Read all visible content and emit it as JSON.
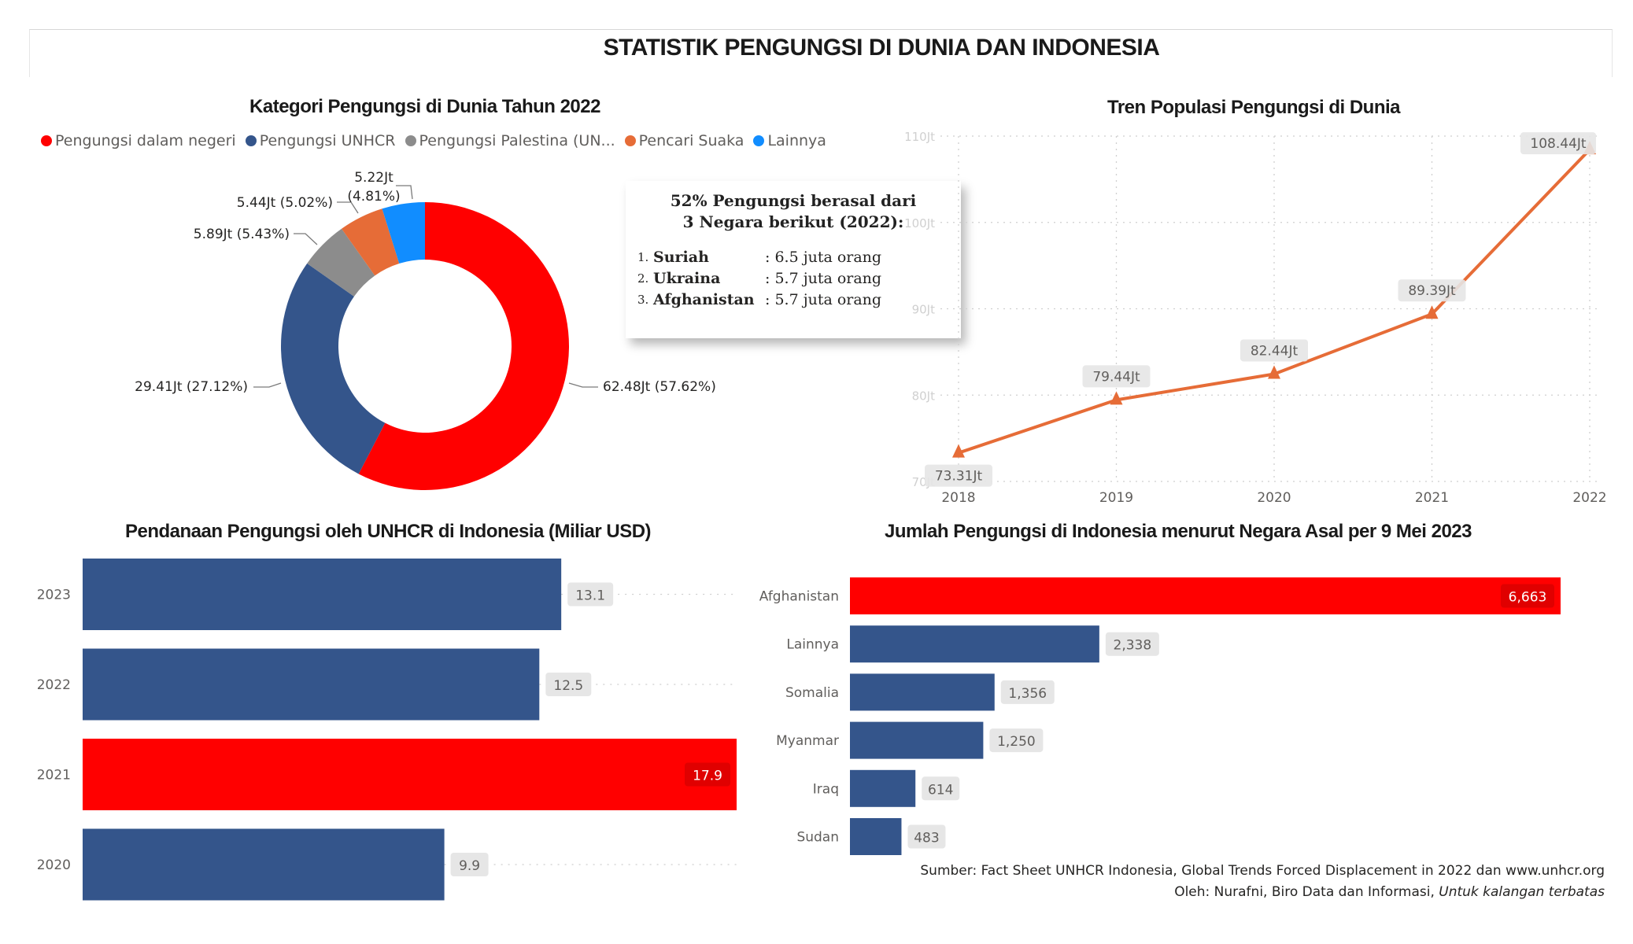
{
  "page": {
    "title": "STATISTIK PENGUNGSI DI DUNIA DAN INDONESIA"
  },
  "callout": {
    "heading_line1": "52% Pengungsi berasal dari",
    "heading_line2": "3 Negara berikut (2022):",
    "items": [
      {
        "num": "1.",
        "country": "Suriah",
        "value": ": 6.5 juta orang"
      },
      {
        "num": "2.",
        "country": "Ukraina",
        "value": ": 5.7 juta orang"
      },
      {
        "num": "3.",
        "country": "Afghanistan",
        "value": ": 5.7 juta orang"
      }
    ]
  },
  "footer": {
    "source": "Sumber: Fact Sheet UNHCR Indonesia, Global  Trends  Forced Displacement in 2022 dan www.unhcr.org",
    "author": "Oleh: Nurafni, Biro Data dan Informasi, ",
    "author_note": "Untuk kalangan terbatas"
  },
  "chart_data": [
    {
      "type": "pie",
      "title": "Kategori Pengungsi di Dunia Tahun 2022",
      "legend_position": "top-left",
      "slices": [
        {
          "name": "Pengungsi dalam negeri",
          "value": 62.48,
          "percent": 57.62,
          "label": "62.48Jt (57.62%)",
          "color": "#FF0000"
        },
        {
          "name": "Pengungsi UNHCR",
          "value": 29.41,
          "percent": 27.12,
          "label": "29.41Jt (27.12%)",
          "color": "#34558B"
        },
        {
          "name": "Pengungsi Palestina (UN...",
          "value": 5.89,
          "percent": 5.43,
          "label": "5.89Jt (5.43%)",
          "color": "#8C8C8C"
        },
        {
          "name": "Pencari Suaka",
          "value": 5.44,
          "percent": 5.02,
          "label": "5.44Jt (5.02%)",
          "color": "#E66C37"
        },
        {
          "name": "Lainnya",
          "value": 5.22,
          "percent": 4.81,
          "label": "5.22Jt (4.81%)",
          "label_line1": "5.22Jt",
          "label_line2": "(4.81%)",
          "color": "#118DFF"
        }
      ]
    },
    {
      "type": "line",
      "title": "Tren Populasi Pengungsi di Dunia",
      "x": [
        "2018",
        "2019",
        "2020",
        "2021",
        "2022"
      ],
      "values": [
        73.31,
        79.44,
        82.44,
        89.39,
        108.44
      ],
      "data_labels": [
        "73.31Jt",
        "79.44Jt",
        "82.44Jt",
        "89.39Jt",
        "108.44Jt"
      ],
      "ylim": [
        70,
        110
      ],
      "yticks": [
        70,
        80,
        90,
        100,
        110
      ],
      "ytick_labels": [
        "70Jt",
        "80Jt",
        "90Jt",
        "100Jt",
        "110Jt"
      ],
      "grid": true,
      "color": "#E66C37"
    },
    {
      "type": "bar",
      "orientation": "horizontal",
      "title": "Pendanaan Pengungsi oleh UNHCR di Indonesia (Miliar USD)",
      "categories": [
        "2023",
        "2022",
        "2021",
        "2020"
      ],
      "values": [
        13.1,
        12.5,
        17.9,
        9.9
      ],
      "data_labels": [
        "13.1",
        "12.5",
        "17.9",
        "9.9"
      ],
      "highlight": "2021",
      "colors": {
        "default": "#34558B",
        "highlight": "#FF0000"
      },
      "xlim": [
        0,
        17.9
      ]
    },
    {
      "type": "bar",
      "orientation": "horizontal",
      "title": "Jumlah Pengungsi di Indonesia menurut Negara Asal per 9 Mei 2023",
      "categories": [
        "Afghanistan",
        "Lainnya",
        "Somalia",
        "Myanmar",
        "Iraq",
        "Sudan"
      ],
      "values": [
        6663,
        2338,
        1356,
        1250,
        614,
        483
      ],
      "data_labels": [
        "6,663",
        "2,338",
        "1,356",
        "1,250",
        "614",
        "483"
      ],
      "highlight": "Afghanistan",
      "colors": {
        "default": "#34558B",
        "highlight": "#FF0000"
      },
      "xlim": [
        0,
        6663
      ]
    }
  ]
}
